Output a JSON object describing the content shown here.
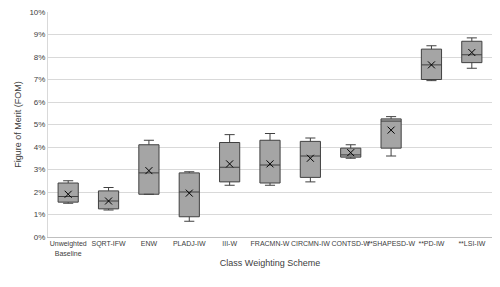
{
  "chart_data": {
    "type": "box",
    "x_label": "Class Weighting Scheme",
    "y_label": "Figure of Merit (FOM)",
    "categories": [
      "Unweighted Baseline",
      "SQRT-IFW",
      "ENW",
      "PLADJ-IW",
      "III-W",
      "FRACMN-W",
      "CIRCMN-IW",
      "CONTSD-W",
      "**SHAPESD-W",
      "**PD-IW",
      "**LSI-IW"
    ],
    "min": [
      1.5,
      1.2,
      1.9,
      0.7,
      2.3,
      2.3,
      2.45,
      3.5,
      3.6,
      6.95,
      7.5
    ],
    "q1": [
      1.55,
      1.25,
      1.9,
      0.9,
      2.45,
      2.4,
      2.65,
      3.55,
      3.95,
      7.0,
      7.75
    ],
    "median": [
      1.8,
      1.6,
      2.85,
      2.0,
      3.1,
      3.2,
      3.6,
      3.65,
      5.15,
      7.65,
      8.1
    ],
    "q3": [
      2.4,
      2.05,
      4.1,
      2.85,
      4.2,
      4.3,
      4.25,
      3.95,
      5.25,
      8.35,
      8.7
    ],
    "max": [
      2.5,
      2.2,
      4.3,
      2.9,
      4.55,
      4.6,
      4.4,
      4.1,
      5.35,
      8.5,
      8.85
    ],
    "mean": [
      1.9,
      1.6,
      2.95,
      1.95,
      3.25,
      3.25,
      3.5,
      3.75,
      4.75,
      7.65,
      8.2
    ],
    "color": "#a5a5a5",
    "marker": "x",
    "ylim": [
      0,
      10
    ],
    "yticks": [
      {
        "value": 0,
        "label": "0%"
      },
      {
        "value": 1,
        "label": "1%"
      },
      {
        "value": 2,
        "label": "2%"
      },
      {
        "value": 3,
        "label": "3%"
      },
      {
        "value": 4,
        "label": "4%"
      },
      {
        "value": 5,
        "label": "5%"
      },
      {
        "value": 6,
        "label": "6%"
      },
      {
        "value": 7,
        "label": "7%"
      },
      {
        "value": 8,
        "label": "8%"
      },
      {
        "value": 9,
        "label": "9%"
      },
      {
        "value": 10,
        "label": "10%"
      }
    ],
    "grid": true
  }
}
